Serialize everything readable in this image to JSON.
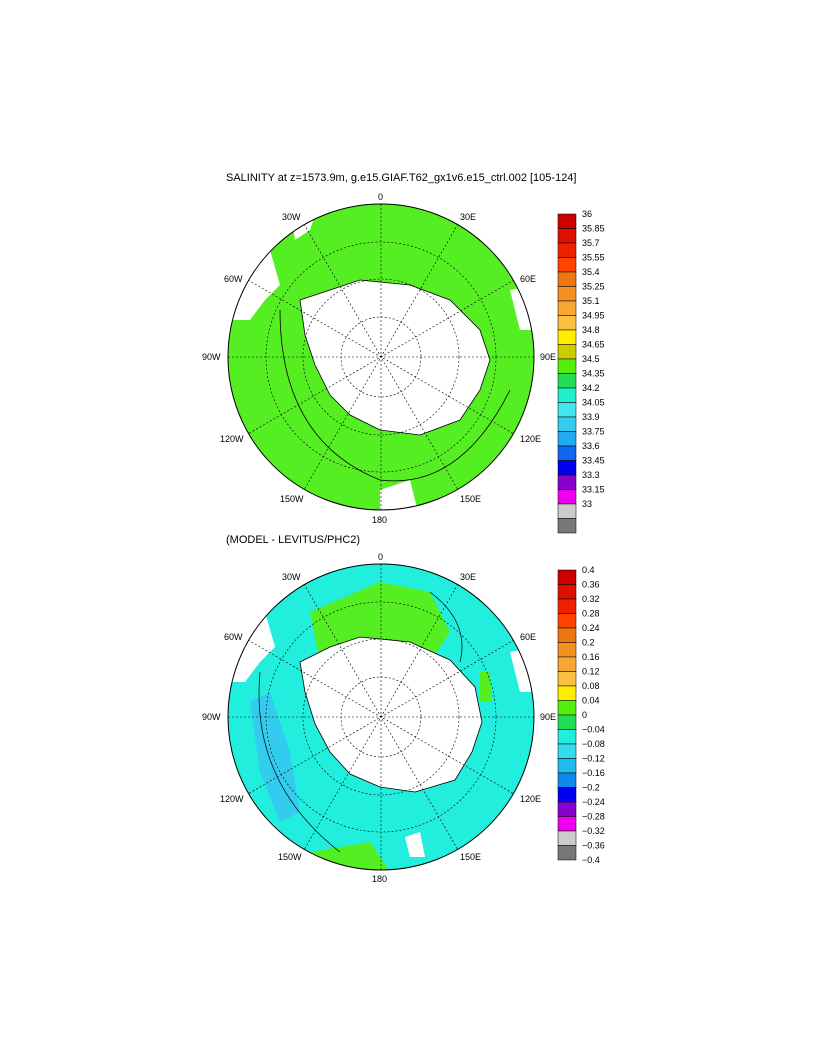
{
  "panels": [
    {
      "title": "SALINITY at z=1573.9m, g.e15.GIAF.T62_gx1v6.e15_ctrl.002 [105-124]",
      "lon_labels": {
        "0": "0",
        "30E": "30E",
        "60E": "60E",
        "90E": "90E",
        "120E": "120E",
        "150E": "150E",
        "180": "180",
        "150W": "150W",
        "120W": "120W",
        "90W": "90W",
        "60W": "60W",
        "30W": "30W"
      },
      "colorbar": {
        "levels": [
          "36",
          "35.85",
          "35.7",
          "35.55",
          "35.4",
          "35.25",
          "35.1",
          "34.95",
          "34.8",
          "34.65",
          "34.5",
          "34.35",
          "34.2",
          "34.05",
          "33.9",
          "33.75",
          "33.6",
          "33.45",
          "33.3",
          "33.15",
          "33"
        ],
        "colors": [
          "#cc0000",
          "#dd1100",
          "#ee2200",
          "#ff4400",
          "#ee7711",
          "#f59022",
          "#f7a833",
          "#fbc040",
          "#ffee00",
          "#cccc00",
          "#55ee11",
          "#22dd55",
          "#22eecc",
          "#44e6ee",
          "#33ccee",
          "#22aaee",
          "#1166ee",
          "#0000ee",
          "#8800cc",
          "#ee00ee",
          "#cccccc",
          "#777777"
        ]
      },
      "ocean_color": "#55ee22"
    },
    {
      "title": "(MODEL - LEVITUS/PHC2)",
      "lon_labels": {
        "0": "0",
        "30E": "30E",
        "60E": "60E",
        "90E": "90E",
        "120E": "120E",
        "150E": "150E",
        "180": "180",
        "150W": "150W",
        "120W": "120W",
        "90W": "90W",
        "60W": "60W",
        "30W": "30W"
      },
      "colorbar": {
        "levels": [
          "0.4",
          "0.36",
          "0.32",
          "0.28",
          "0.24",
          "0.2",
          "0.16",
          "0.12",
          "0.08",
          "0.04",
          "0",
          "−0.04",
          "−0.08",
          "−0.12",
          "−0.16",
          "−0.2",
          "−0.24",
          "−0.28",
          "−0.32",
          "−0.36",
          "−0.4"
        ],
        "colors": [
          "#cc0000",
          "#dd1100",
          "#ee2200",
          "#ff4400",
          "#ee7711",
          "#f59022",
          "#f7a833",
          "#fbc040",
          "#ffee00",
          "#55ee11",
          "#22dd55",
          "#22eedd",
          "#33ddee",
          "#22bbee",
          "#1188ee",
          "#0000ee",
          "#8800cc",
          "#ee00ee",
          "#cccccc",
          "#777777"
        ]
      },
      "ocean_color": "#22eedd"
    }
  ]
}
